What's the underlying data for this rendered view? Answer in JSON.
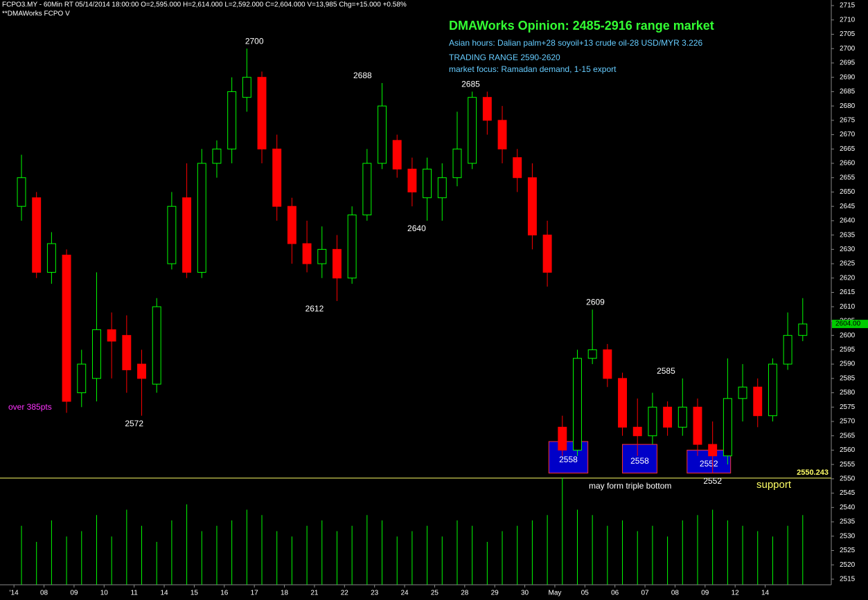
{
  "chart_data": {
    "type": "candlestick",
    "header": "FCPO3.MY - 60Min RT   05/14/2014  18:00:00   O=2,595.000   H=2,614.000   L=2,592.000   C=2,604.000   V=13,985   Chg=+15.000   +0.58%",
    "subheader": "**DMAWorks FCPO V",
    "title": "DMAWorks Opinion: 2485-2916 range market",
    "notes": [
      "Asian hours: Dalian palm+28 soyoil+13 crude oil-28 USD/MYR 3.226",
      "TRADING RANGE 2590-2620",
      "market focus: Ramadan demand, 1-15 export"
    ],
    "up_color": "#00ff00",
    "down_color": "#ff0000",
    "volume_color": "#00ff00",
    "x": [
      0.25,
      0.75,
      1.25,
      1.75,
      2.25,
      2.75,
      3.25,
      3.75,
      4.25,
      4.75,
      5.25,
      5.75,
      6.25,
      6.75,
      7.25,
      7.75,
      8.25,
      8.75,
      9.25,
      9.75,
      10.25,
      10.75,
      11.25,
      11.75,
      12.25,
      12.75,
      13.25,
      13.75,
      14.25,
      14.75,
      15.25,
      15.75,
      16.25,
      16.75,
      17.25,
      17.75,
      18.25,
      18.75,
      19.25,
      19.75,
      20.25,
      20.75,
      21.25,
      21.75,
      22.25,
      22.75,
      23.25,
      23.75,
      24.25,
      24.75,
      25.25,
      25.75,
      26.25
    ],
    "open": [
      2645,
      2648,
      2622,
      2628,
      2580,
      2585,
      2602,
      2600,
      2590,
      2583,
      2625,
      2648,
      2622,
      2660,
      2665,
      2683,
      2690,
      2665,
      2645,
      2632,
      2625,
      2630,
      2620,
      2642,
      2660,
      2668,
      2658,
      2648,
      2648,
      2655,
      2660,
      2683,
      2675,
      2662,
      2655,
      2635,
      2568,
      2560,
      2592,
      2595,
      2585,
      2568,
      2565,
      2575,
      2568,
      2575,
      2562,
      2558,
      2578,
      2582,
      2572,
      2590,
      2600
    ],
    "high": [
      2663,
      2650,
      2636,
      2630,
      2595,
      2622,
      2608,
      2607,
      2595,
      2613,
      2650,
      2660,
      2665,
      2668,
      2690,
      2700,
      2692,
      2670,
      2648,
      2640,
      2638,
      2635,
      2645,
      2665,
      2688,
      2670,
      2662,
      2662,
      2660,
      2678,
      2685,
      2685,
      2680,
      2665,
      2660,
      2640,
      2572,
      2595,
      2609,
      2597,
      2587,
      2578,
      2580,
      2577,
      2585,
      2578,
      2570,
      2592,
      2590,
      2585,
      2592,
      2608,
      2613
    ],
    "low": [
      2640,
      2620,
      2618,
      2573,
      2575,
      2577,
      2585,
      2580,
      2572,
      2580,
      2623,
      2620,
      2620,
      2655,
      2660,
      2678,
      2660,
      2640,
      2625,
      2622,
      2620,
      2612,
      2618,
      2640,
      2658,
      2655,
      2645,
      2640,
      2640,
      2652,
      2658,
      2670,
      2660,
      2650,
      2630,
      2617,
      2558,
      2558,
      2590,
      2582,
      2565,
      2558,
      2562,
      2565,
      2565,
      2558,
      2552,
      2555,
      2570,
      2568,
      2570,
      2588,
      2598
    ],
    "close": [
      2655,
      2622,
      2632,
      2577,
      2590,
      2602,
      2598,
      2588,
      2585,
      2610,
      2645,
      2622,
      2660,
      2665,
      2685,
      2690,
      2665,
      2645,
      2632,
      2625,
      2630,
      2620,
      2642,
      2660,
      2680,
      2658,
      2650,
      2658,
      2655,
      2665,
      2683,
      2675,
      2665,
      2655,
      2635,
      2622,
      2560,
      2592,
      2595,
      2585,
      2568,
      2565,
      2575,
      2568,
      2575,
      2562,
      2558,
      2578,
      2582,
      2572,
      2590,
      2600,
      2604
    ],
    "volume": [
      55,
      40,
      60,
      45,
      50,
      65,
      45,
      70,
      55,
      40,
      60,
      75,
      50,
      55,
      60,
      70,
      65,
      50,
      45,
      55,
      60,
      50,
      55,
      65,
      60,
      45,
      50,
      55,
      45,
      60,
      55,
      40,
      50,
      55,
      60,
      65,
      100,
      70,
      65,
      55,
      60,
      50,
      55,
      45,
      60,
      65,
      70,
      60,
      55,
      50,
      45,
      55,
      65
    ],
    "vlim": [
      0,
      100
    ],
    "xlim": [
      -0.05,
      27.2
    ],
    "xticks": [
      {
        "value": 0,
        "label": "'14"
      },
      {
        "value": 1,
        "label": "08"
      },
      {
        "value": 2,
        "label": "09"
      },
      {
        "value": 3,
        "label": "10"
      },
      {
        "value": 4,
        "label": "11"
      },
      {
        "value": 5,
        "label": "14"
      },
      {
        "value": 6,
        "label": "15"
      },
      {
        "value": 7,
        "label": "16"
      },
      {
        "value": 8,
        "label": "17"
      },
      {
        "value": 9,
        "label": "18"
      },
      {
        "value": 10,
        "label": "21"
      },
      {
        "value": 11,
        "label": "22"
      },
      {
        "value": 12,
        "label": "23"
      },
      {
        "value": 13,
        "label": "24"
      },
      {
        "value": 14,
        "label": "25"
      },
      {
        "value": 15,
        "label": "28"
      },
      {
        "value": 16,
        "label": "29"
      },
      {
        "value": 17,
        "label": "30"
      },
      {
        "value": 18,
        "label": "May"
      },
      {
        "value": 19,
        "label": "05"
      },
      {
        "value": 20,
        "label": "06"
      },
      {
        "value": 21,
        "label": "07"
      },
      {
        "value": 22,
        "label": "08"
      },
      {
        "value": 23,
        "label": "09"
      },
      {
        "value": 24,
        "label": "12"
      },
      {
        "value": 25,
        "label": "14"
      }
    ],
    "ylim": [
      2513.05,
      2717.85
    ],
    "yticks": [
      2515,
      2520,
      2525,
      2530,
      2535,
      2540,
      2545,
      2550,
      2555,
      2560,
      2565,
      2570,
      2575,
      2580,
      2585,
      2590,
      2595,
      2600,
      2605,
      2610,
      2615,
      2620,
      2625,
      2630,
      2635,
      2640,
      2645,
      2650,
      2655,
      2660,
      2665,
      2670,
      2675,
      2680,
      2685,
      2690,
      2695,
      2700,
      2705,
      2710,
      2715
    ],
    "peaks": [
      {
        "x": 8.0,
        "value": 2700,
        "side": "above"
      },
      {
        "x": 11.6,
        "value": 2688,
        "side": "above"
      },
      {
        "x": 15.2,
        "value": 2685,
        "side": "above"
      },
      {
        "x": 13.4,
        "value": 2640,
        "side": "below"
      },
      {
        "x": 10.0,
        "value": 2612,
        "side": "below"
      },
      {
        "x": 4.0,
        "value": 2572,
        "side": "below"
      },
      {
        "x": 19.35,
        "value": 2609,
        "side": "above"
      },
      {
        "x": 21.7,
        "value": 2585,
        "side": "above"
      },
      {
        "x": 23.25,
        "value": 2552,
        "side": "below"
      }
    ],
    "zones": [
      {
        "x0": 17.8,
        "x1": 19.1,
        "low": 2552,
        "high": 2563,
        "value": 2558
      },
      {
        "x0": 20.25,
        "x1": 21.4,
        "low": 2552,
        "high": 2562,
        "value": 2558
      },
      {
        "x0": 22.4,
        "x1": 23.85,
        "low": 2552,
        "high": 2560,
        "value": 2552
      }
    ],
    "zone_color": "#0000c8",
    "support": {
      "value": 2550.243,
      "label": "support",
      "color": "#ffff66"
    },
    "last_price": {
      "value": 2604,
      "label": "2604.00"
    },
    "left_note": "over 385pts",
    "bottom_note": "may form triple bottom"
  }
}
